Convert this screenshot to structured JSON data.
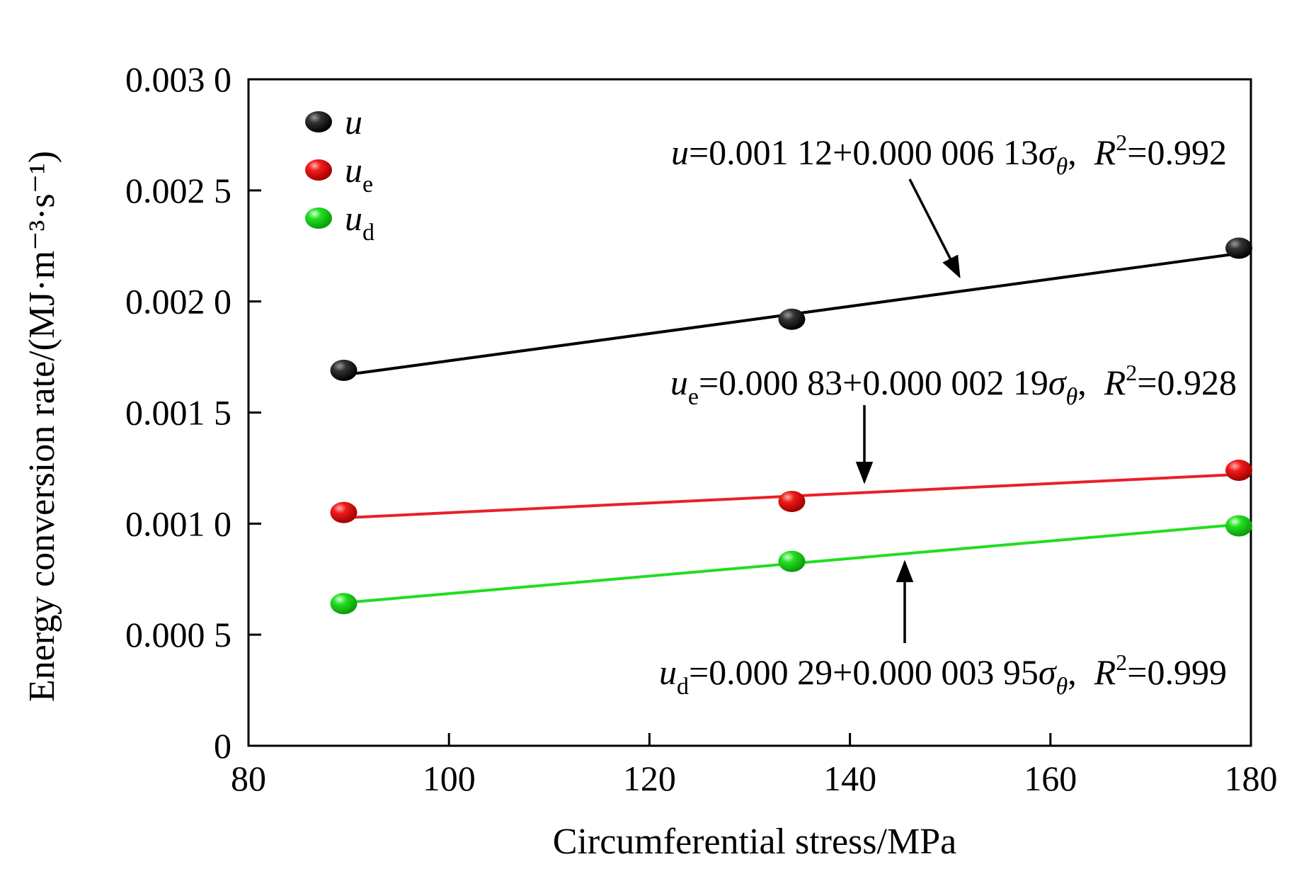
{
  "chart_data": {
    "type": "scatter",
    "xlabel": "Circumferential stress/MPa",
    "ylabel": "Energy conversion rate/(MJ·m⁻³·s⁻¹)",
    "xlim": [
      80,
      180
    ],
    "ylim": [
      0,
      0.003
    ],
    "x_ticks": [
      80,
      100,
      120,
      140,
      160,
      180
    ],
    "x_tick_labels": [
      "80",
      "100",
      "120",
      "140",
      "160",
      "180"
    ],
    "y_ticks": [
      0,
      0.0005,
      0.001,
      0.0015,
      0.002,
      0.0025,
      0.003
    ],
    "y_tick_labels": [
      "0",
      "0.000 5",
      "0.001 0",
      "0.001 5",
      "0.002 0",
      "0.002 5",
      "0.003 0"
    ],
    "grid": false,
    "legend_position": "top-left",
    "series": [
      {
        "name": "u",
        "symbol": "u",
        "subscript": "",
        "color": "#000000",
        "points": [
          [
            89.5,
            0.00169
          ],
          [
            134.2,
            0.00192
          ],
          [
            178.8,
            0.00224
          ]
        ],
        "fit": {
          "intercept": 0.00112,
          "slope": 6.13e-06
        },
        "equation": {
          "lhs_symbol": "u",
          "lhs_sub": "",
          "body": "=0.001 12+0.000 006 13",
          "var": "σ",
          "var_sub": "θ",
          "comma": ",",
          "r_label": "R",
          "r_sup": "2",
          "r_value": "=0.992"
        }
      },
      {
        "name": "ue",
        "symbol": "u",
        "subscript": "e",
        "color": "#e8202a",
        "points": [
          [
            89.5,
            0.00105
          ],
          [
            134.2,
            0.0011
          ],
          [
            178.8,
            0.00124
          ]
        ],
        "fit": {
          "intercept": 0.00083,
          "slope": 2.19e-06
        },
        "equation": {
          "lhs_symbol": "u",
          "lhs_sub": "e",
          "body": "=0.000 83+0.000 002 19",
          "var": "σ",
          "var_sub": "θ",
          "comma": ",",
          "r_label": "R",
          "r_sup": "2",
          "r_value": "=0.928"
        }
      },
      {
        "name": "ud",
        "symbol": "u",
        "subscript": "d",
        "color": "#22dd22",
        "points": [
          [
            89.5,
            0.00064
          ],
          [
            134.2,
            0.00083
          ],
          [
            178.8,
            0.00099
          ]
        ],
        "fit": {
          "intercept": 0.00029,
          "slope": 3.95e-06
        },
        "equation": {
          "lhs_symbol": "u",
          "lhs_sub": "d",
          "body": "=0.000 29+0.000 003 95",
          "var": "σ",
          "var_sub": "θ",
          "comma": ",",
          "r_label": "R",
          "r_sup": "2",
          "r_value": "=0.999"
        }
      }
    ]
  }
}
